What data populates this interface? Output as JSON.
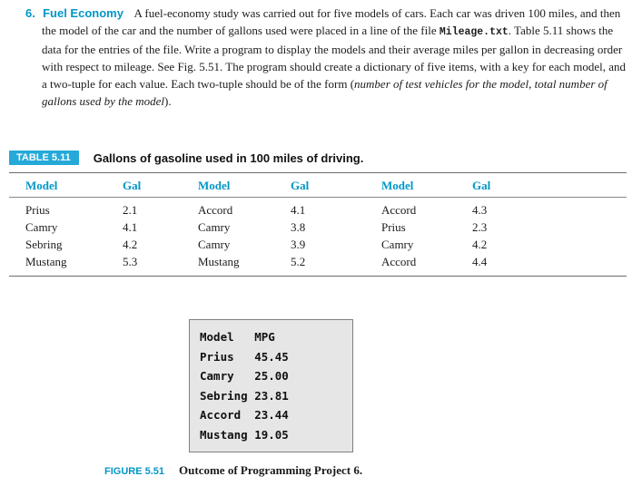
{
  "colors": {
    "accent_text": "#0097c7",
    "table_label_bg": "#25a9d8",
    "output_bg": "#e6e6e6"
  },
  "exercise": {
    "number": "6.",
    "title": "Fuel Economy",
    "body_segments": [
      {
        "text": "A fuel-economy study was carried out for five models of cars. Each car was driven 100 miles, and then the model of the car and the number of gallons used were placed in a line of the file ",
        "style": "normal"
      },
      {
        "text": "Mileage.txt",
        "style": "code"
      },
      {
        "text": ". Table 5.11 shows the data for the entries of the file. Write a program to display the models and their average miles per gallon in decreasing order with respect to mileage. See Fig. 5.51. The program should create a dictionary of five items, with a key for each model, and a two-tuple for each value. Each two-tuple should be of the form (",
        "style": "normal"
      },
      {
        "text": "number of test vehicles for the model, total number of gallons used by the model",
        "style": "italic"
      },
      {
        "text": ").",
        "style": "normal"
      }
    ]
  },
  "table": {
    "label": "TABLE 5.11",
    "title": "Gallons of gasoline used in 100 miles of driving.",
    "headers": [
      "Model",
      "Gal",
      "Model",
      "Gal",
      "Model",
      "Gal"
    ],
    "rows": [
      [
        "Prius",
        "2.1",
        "Accord",
        "4.1",
        "Accord",
        "4.3"
      ],
      [
        "Camry",
        "4.1",
        "Camry",
        "3.8",
        "Prius",
        "2.3"
      ],
      [
        "Sebring",
        "4.2",
        "Camry",
        "3.9",
        "Camry",
        "4.2"
      ],
      [
        "Mustang",
        "5.3",
        "Mustang",
        "5.2",
        "Accord",
        "4.4"
      ]
    ]
  },
  "output_box": {
    "lines": [
      {
        "name": "Model",
        "value": "MPG"
      },
      {
        "name": "Prius",
        "value": "45.45"
      },
      {
        "name": "Camry",
        "value": "25.00"
      },
      {
        "name": "Sebring",
        "value": "23.81"
      },
      {
        "name": "Accord",
        "value": "23.44"
      },
      {
        "name": "Mustang",
        "value": "19.05"
      }
    ]
  },
  "figure": {
    "label": "FIGURE 5.51",
    "caption": "Outcome of Programming Project 6."
  }
}
